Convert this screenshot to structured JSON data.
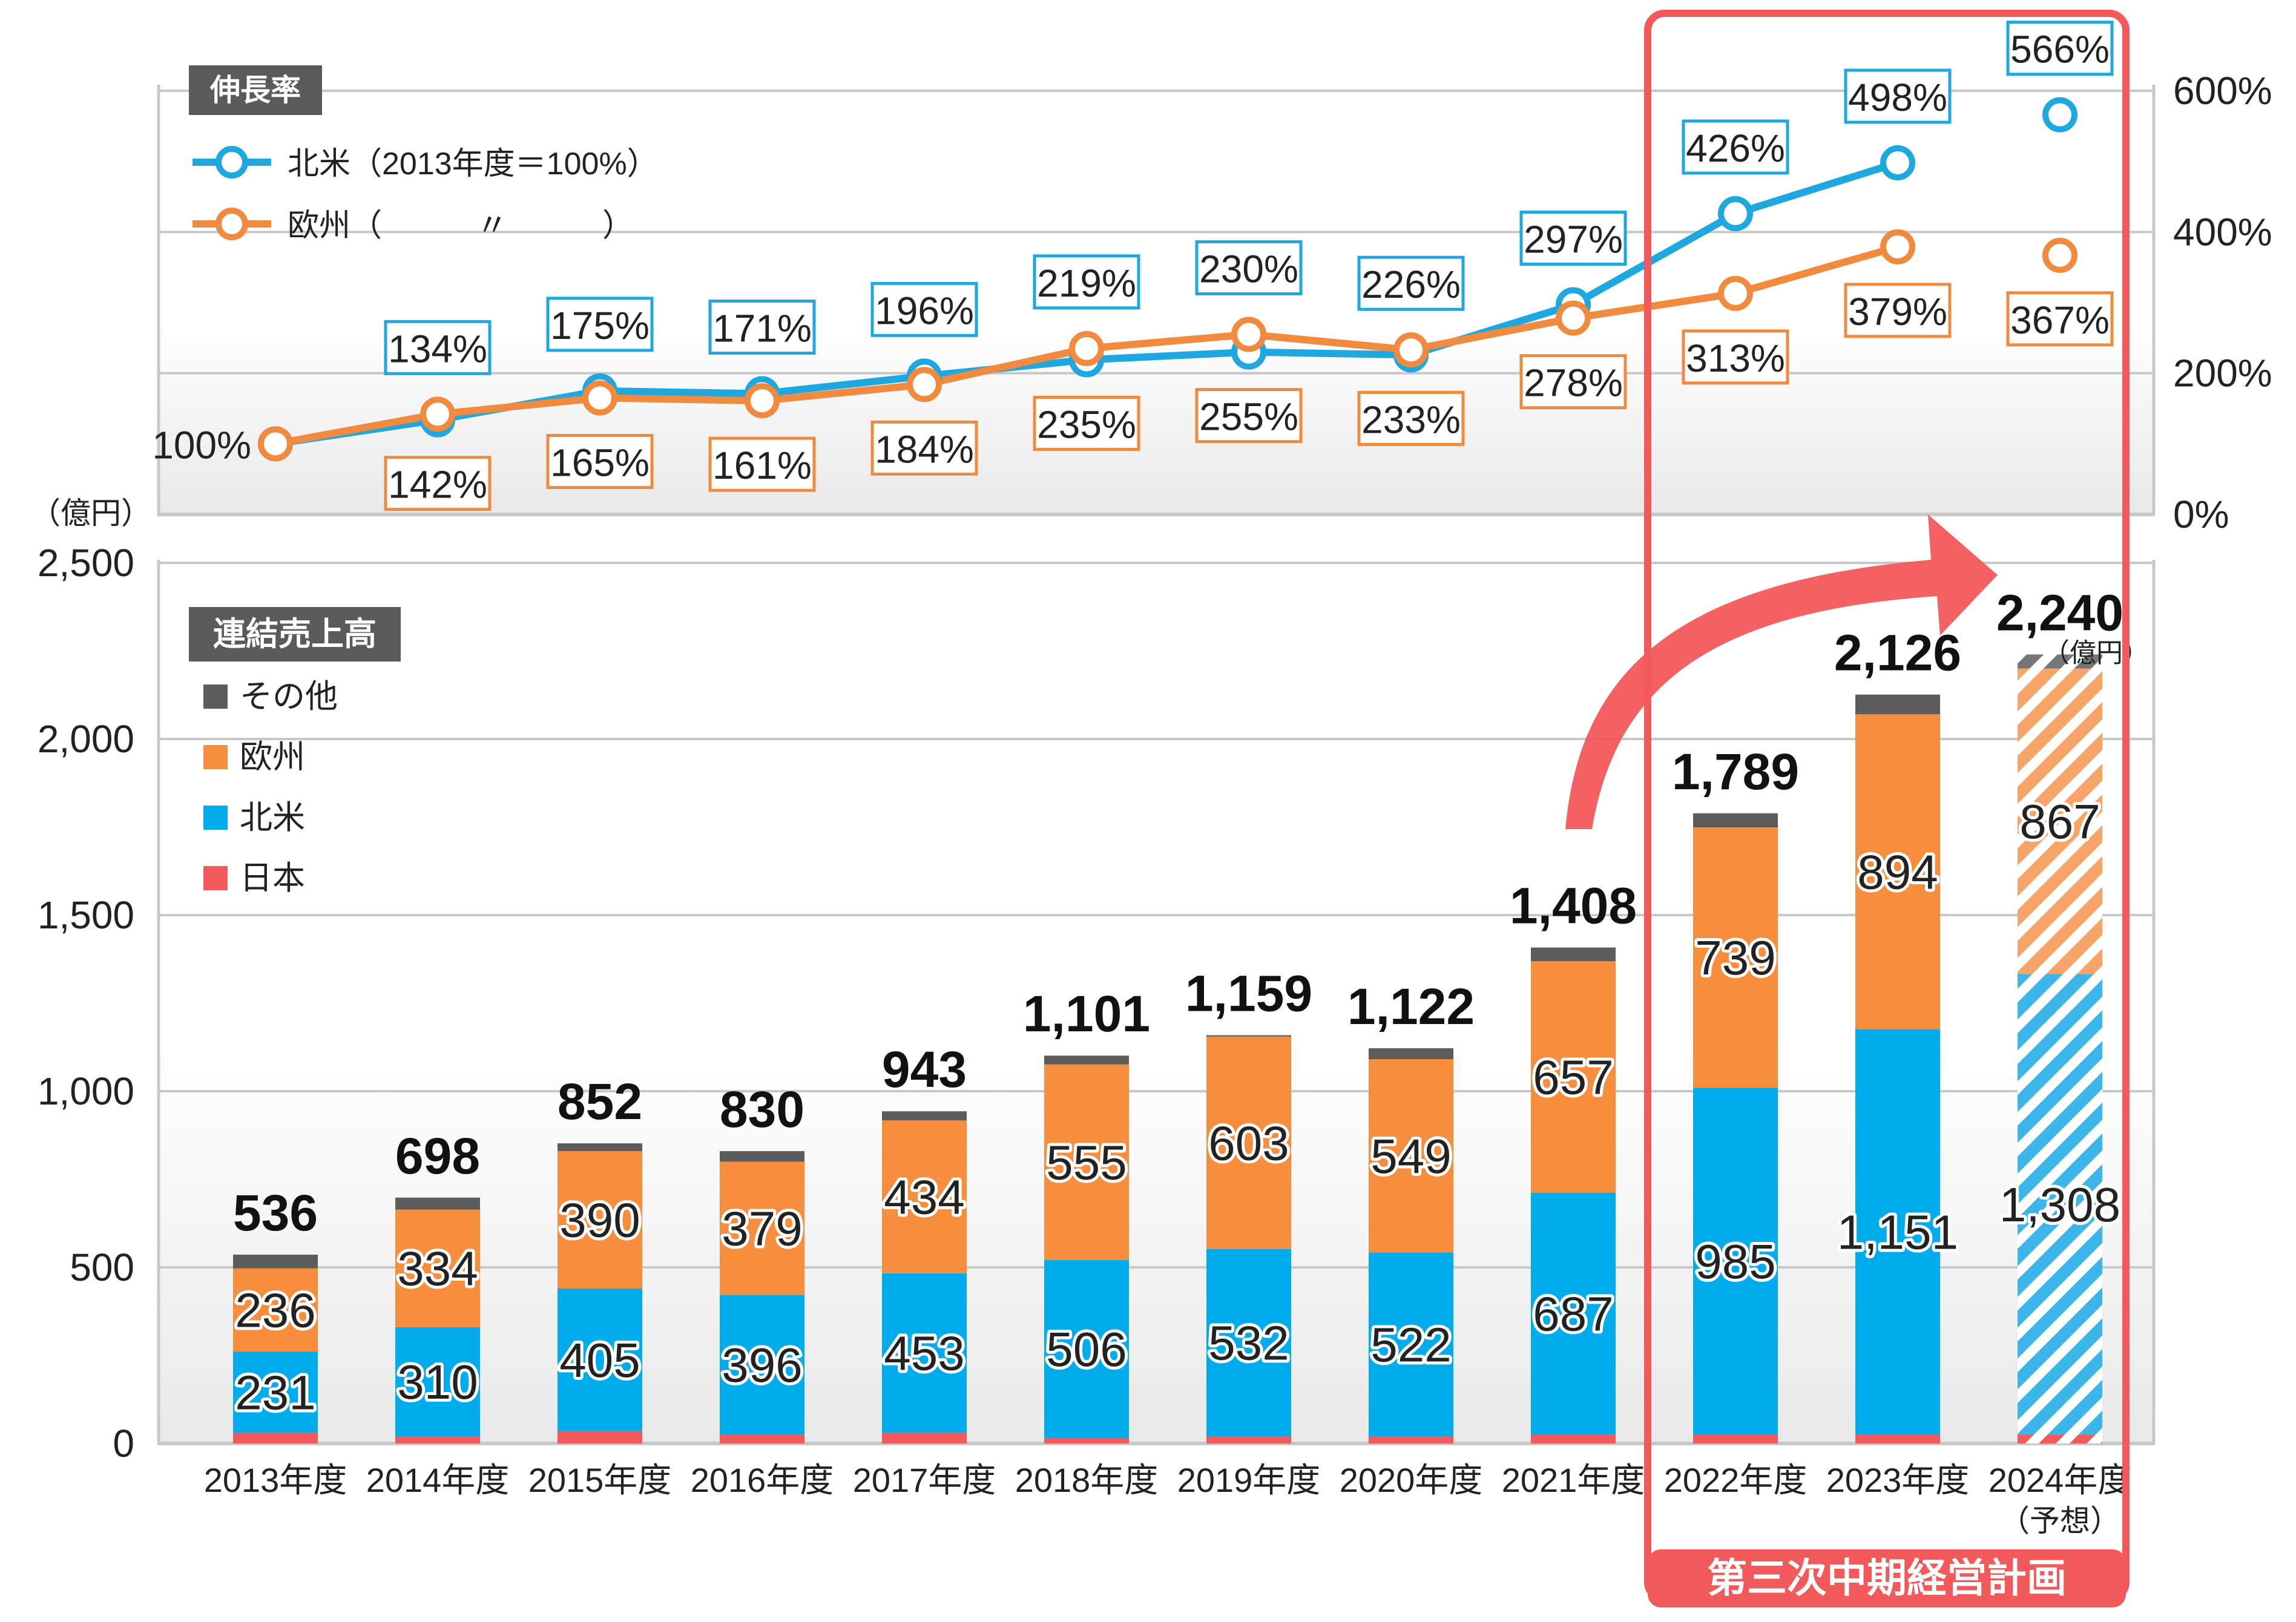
{
  "chart_data": [
    {
      "type": "line",
      "title": "伸長率",
      "categories": [
        "2013年度",
        "2014年度",
        "2015年度",
        "2016年度",
        "2017年度",
        "2018年度",
        "2019年度",
        "2020年度",
        "2021年度",
        "2022年度",
        "2023年度",
        "2024年度（予想）"
      ],
      "series": [
        {
          "name": "北米（2013年度＝100%）",
          "values": [
            100,
            134,
            175,
            171,
            196,
            219,
            230,
            226,
            297,
            426,
            498,
            566
          ],
          "labels": [
            "100%",
            "134%",
            "175%",
            "171%",
            "196%",
            "219%",
            "230%",
            "226%",
            "297%",
            "426%",
            "498%",
            "566%"
          ],
          "color": "#1FA8DF"
        },
        {
          "name": "欧州（　　　〃　　　）",
          "values": [
            100,
            142,
            165,
            161,
            184,
            235,
            255,
            233,
            278,
            313,
            379,
            367
          ],
          "labels": [
            "",
            "142%",
            "165%",
            "161%",
            "184%",
            "235%",
            "255%",
            "233%",
            "278%",
            "313%",
            "379%",
            "367%"
          ],
          "color": "#F08A3E"
        }
      ],
      "ylim": [
        0,
        600
      ],
      "yticks": [
        "0%",
        "200%",
        "400%",
        "600%"
      ],
      "last_point_forecast": true
    },
    {
      "type": "bar",
      "stacked": true,
      "title": "連結売上高",
      "unit_label": "（億円）",
      "categories": [
        "2013年度",
        "2014年度",
        "2015年度",
        "2016年度",
        "2017年度",
        "2018年度",
        "2019年度",
        "2020年度",
        "2021年度",
        "2022年度",
        "2023年度",
        "2024年度"
      ],
      "category_notes": [
        "",
        "",
        "",
        "",
        "",
        "",
        "",
        "",
        "",
        "",
        "",
        "（予想）"
      ],
      "series": [
        {
          "name": "日本",
          "color": "#F2595B",
          "values": [
            30,
            20,
            35,
            25,
            30,
            15,
            20,
            20,
            25,
            25,
            25,
            25
          ]
        },
        {
          "name": "北米",
          "color": "#00ACEC",
          "values": [
            231,
            310,
            405,
            396,
            453,
            506,
            532,
            522,
            687,
            985,
            1151,
            1308
          ],
          "labels": [
            "231",
            "310",
            "405",
            "396",
            "453",
            "506",
            "532",
            "522",
            "687",
            "985",
            "1,151",
            "1,308"
          ]
        },
        {
          "name": "欧州",
          "color": "#F78E3D",
          "values": [
            236,
            334,
            390,
            379,
            434,
            555,
            603,
            549,
            657,
            739,
            894,
            867
          ],
          "labels": [
            "236",
            "334",
            "390",
            "379",
            "434",
            "555",
            "603",
            "549",
            "657",
            "739",
            "894",
            "867"
          ]
        },
        {
          "name": "その他",
          "color": "#5C5C5C",
          "values": [
            39,
            34,
            22,
            30,
            26,
            25,
            4,
            31,
            39,
            40,
            56,
            40
          ]
        }
      ],
      "totals": [
        536,
        698,
        852,
        830,
        943,
        1101,
        1159,
        1122,
        1408,
        1789,
        2126,
        2240
      ],
      "total_labels": [
        "536",
        "698",
        "852",
        "830",
        "943",
        "1,101",
        "1,159",
        "1,122",
        "1,408",
        "1,789",
        "2,126",
        "2,240"
      ],
      "last_total_unit": "（億円）",
      "ylim": [
        0,
        2500
      ],
      "yticks": [
        "0",
        "500",
        "1,000",
        "1,500",
        "2,000",
        "2,500"
      ],
      "forecast_index": 11
    }
  ],
  "legend_order": [
    "その他",
    "欧州",
    "北米",
    "日本"
  ],
  "highlight": {
    "label": "第三次中期経営計画",
    "from_index": 9,
    "to_index": 11,
    "color": "#F2595B"
  }
}
